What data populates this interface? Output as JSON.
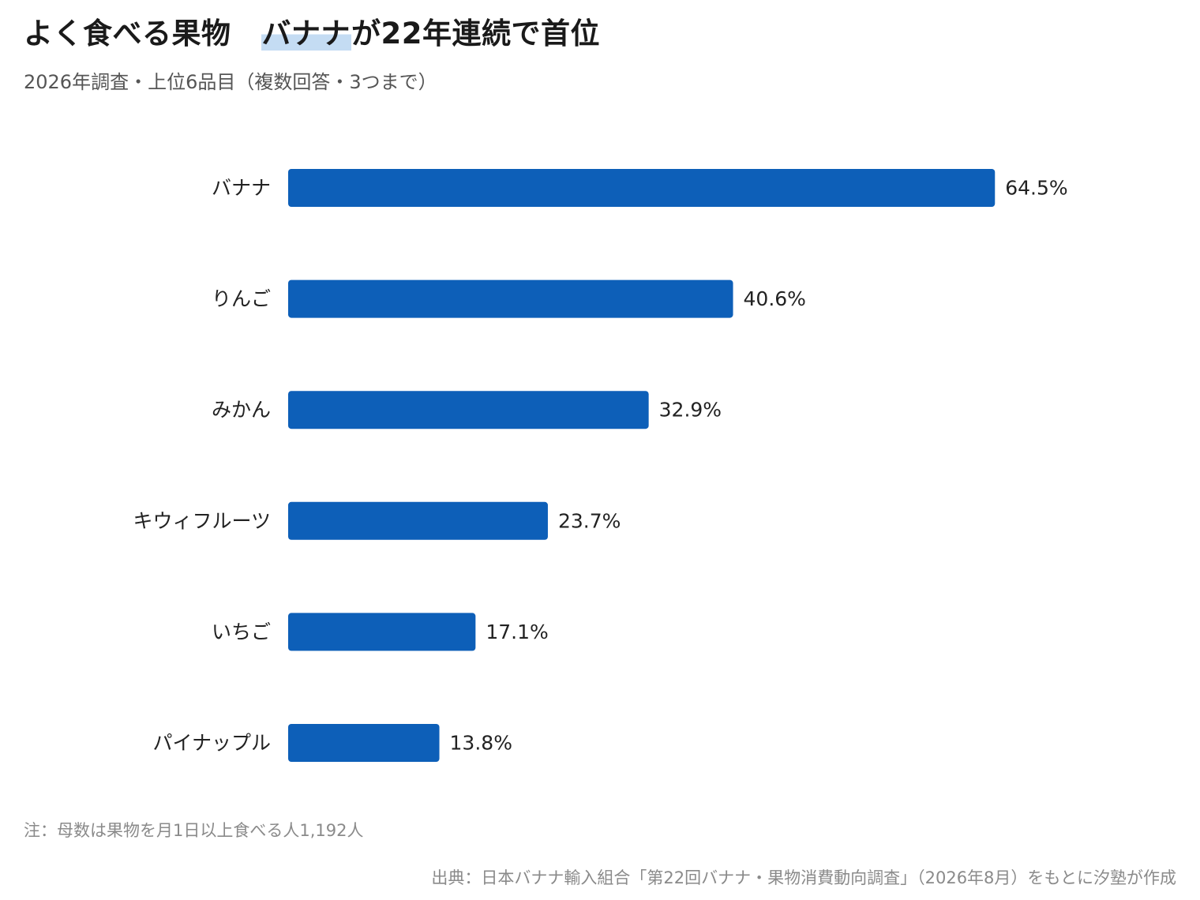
{
  "header": {
    "title_main": "よく食べる果物",
    "title_highlight": "バナナ",
    "title_rest": "が22年連続で首位",
    "subtitle": "2026年調査・上位6品目（複数回答・3つまで）"
  },
  "chart_data": {
    "type": "bar",
    "orientation": "horizontal",
    "categories": [
      "バナナ",
      "りんご",
      "みかん",
      "キウィフルーツ",
      "いちご",
      "パイナップル"
    ],
    "values": [
      64.5,
      40.6,
      32.9,
      23.7,
      17.1,
      13.8
    ],
    "value_labels": [
      "64.5%",
      "40.6%",
      "32.9%",
      "23.7%",
      "17.1%",
      "13.8%"
    ],
    "unit": "%",
    "xlim": [
      0,
      100
    ],
    "grid": false,
    "bar_color": "#0d5fb8"
  },
  "footer": {
    "note": "注：母数は果物を月1日以上食べる人1,192人",
    "source": "出典：日本バナナ輸入組合「第22回バナナ・果物消費動向調査」（2026年8月）をもとに汐塾が作成"
  },
  "colors": {
    "bar": "#0d5fb8",
    "highlight": "#c4dcf3",
    "muted_text": "#8a8a8a"
  }
}
